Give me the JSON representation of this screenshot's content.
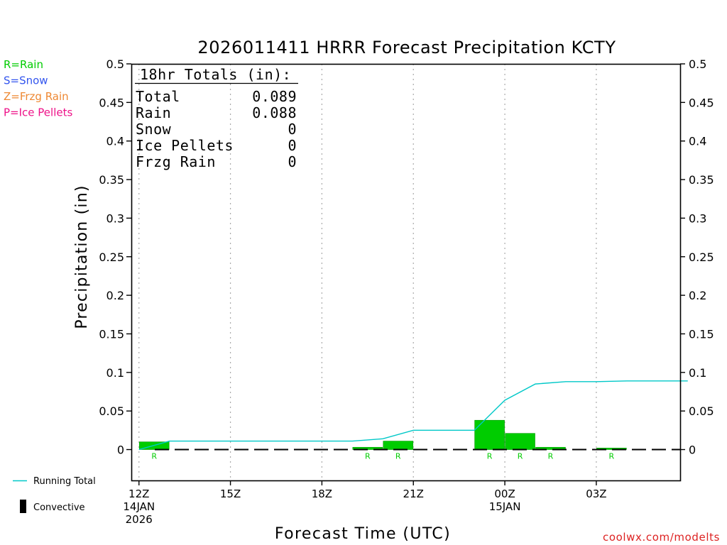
{
  "chart_data": {
    "type": "bar",
    "title": "2026011411 HRRR Forecast Precipitation KCTY",
    "xlabel": "Forecast Time (UTC)",
    "ylabel": "Precipitation (in)",
    "ylim": [
      -0.04,
      0.5
    ],
    "y_ticks": [
      "0",
      "0.05",
      "0.1",
      "0.15",
      "0.2",
      "0.25",
      "0.3",
      "0.35",
      "0.4",
      "0.45",
      "0.5"
    ],
    "xlim_hours": [
      -0.25,
      17.75
    ],
    "x_ticks": [
      {
        "hour": 0,
        "label": "12Z",
        "sub1": "14JAN",
        "sub2": "2026"
      },
      {
        "hour": 3,
        "label": "15Z",
        "sub1": "",
        "sub2": ""
      },
      {
        "hour": 6,
        "label": "18Z",
        "sub1": "",
        "sub2": ""
      },
      {
        "hour": 9,
        "label": "21Z",
        "sub1": "",
        "sub2": ""
      },
      {
        "hour": 12,
        "label": "00Z",
        "sub1": "15JAN",
        "sub2": ""
      },
      {
        "hour": 15,
        "label": "03Z",
        "sub1": "",
        "sub2": ""
      }
    ],
    "hourly_bars": {
      "name": "Convective",
      "hours": [
        1,
        8,
        9,
        12,
        13,
        14,
        16
      ],
      "values": [
        0.01,
        0.003,
        0.011,
        0.038,
        0.021,
        0.003,
        0.002
      ],
      "ptype": [
        "R",
        "R",
        "R",
        "R",
        "R",
        "R",
        "R"
      ],
      "color": "#00cc00"
    },
    "running_total": {
      "name": "Running Total",
      "hours": [
        0,
        1,
        2,
        3,
        4,
        5,
        6,
        7,
        8,
        9,
        10,
        11,
        12,
        13,
        14,
        15,
        16,
        17,
        18
      ],
      "values": [
        0,
        0.011,
        0.011,
        0.011,
        0.011,
        0.011,
        0.011,
        0.011,
        0.014,
        0.025,
        0.025,
        0.025,
        0.064,
        0.085,
        0.088,
        0.088,
        0.089,
        0.089,
        0.089
      ],
      "color": "#00c8c8"
    },
    "totals_box": {
      "heading": "18hr Totals (in):",
      "rows": [
        {
          "label": "Total",
          "value": "0.089"
        },
        {
          "label": "Rain",
          "value": "0.088"
        },
        {
          "label": "Snow",
          "value": "0"
        },
        {
          "label": "Ice Pellets",
          "value": "0"
        },
        {
          "label": "Frzg Rain",
          "value": "0"
        }
      ]
    },
    "ptype_legend": [
      {
        "text": "R=Rain",
        "color": "#00cc00"
      },
      {
        "text": "S=Snow",
        "color": "#3355ee"
      },
      {
        "text": "Z=Frzg Rain",
        "color": "#ee8833"
      },
      {
        "text": "P=Ice Pellets",
        "color": "#ee1188"
      }
    ],
    "series_legend": {
      "running_total": "Running Total",
      "convective": "Convective"
    }
  },
  "credit": "coolwx.com/modelts"
}
